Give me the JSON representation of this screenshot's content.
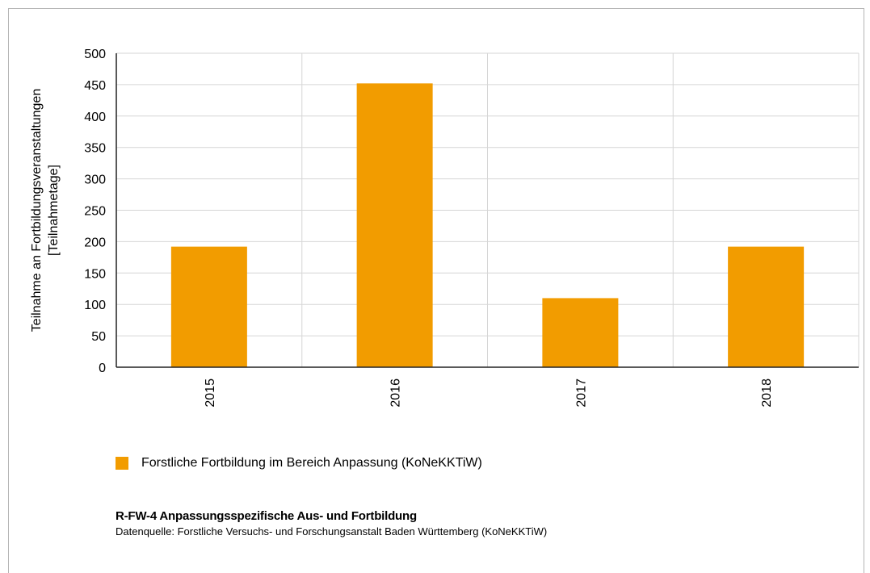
{
  "chart_data": {
    "type": "bar",
    "categories": [
      "2015",
      "2016",
      "2017",
      "2018"
    ],
    "series": [
      {
        "name": "Forstliche Fortbildung im Bereich Anpassung (KoNeKKTiW)",
        "values": [
          192,
          452,
          110,
          192
        ]
      }
    ],
    "ylabel_line1": "Teilnahme an Fortbildungsveranstaltungen",
    "ylabel_line2": "[Teilnahmetage]",
    "ylim": [
      0,
      500
    ],
    "yticks": [
      0,
      50,
      100,
      150,
      200,
      250,
      300,
      350,
      400,
      450,
      500
    ],
    "grid": true,
    "legend_position": "bottom-left"
  },
  "colors": {
    "bar": "#f29c00",
    "grid": "#d6d6d6",
    "axis": "#222222"
  },
  "caption": {
    "title": "R-FW-4 Anpassungsspezifische Aus- und Fortbildung",
    "source": "Datenquelle: Forstliche Versuchs- und Forschungsanstalt Baden Württemberg (KoNeKKTiW)"
  }
}
